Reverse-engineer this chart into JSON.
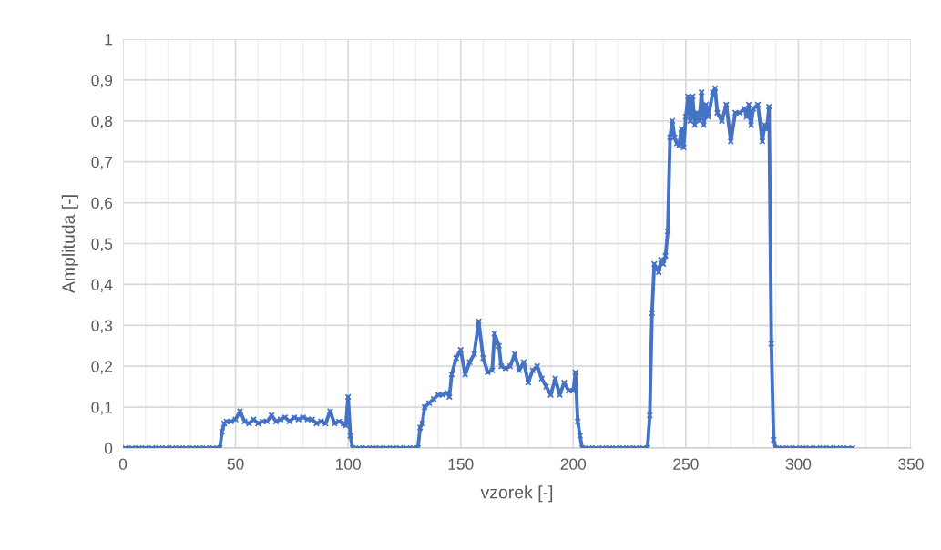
{
  "chart_data": {
    "type": "line",
    "xlabel": "vzorek [-]",
    "ylabel": "Amplituda [-]",
    "xlim": [
      0,
      350
    ],
    "xticks": [
      0,
      50,
      100,
      150,
      200,
      250,
      300,
      350
    ],
    "ylim": [
      0,
      1
    ],
    "yticks": [
      {
        "value": 0,
        "label": "0"
      },
      {
        "value": 0.1,
        "label": "0,1"
      },
      {
        "value": 0.2,
        "label": "0,2"
      },
      {
        "value": 0.3,
        "label": "0,3"
      },
      {
        "value": 0.4,
        "label": "0,4"
      },
      {
        "value": 0.5,
        "label": "0,5"
      },
      {
        "value": 0.6,
        "label": "0,6"
      },
      {
        "value": 0.7,
        "label": "0,7"
      },
      {
        "value": 0.8,
        "label": "0,8"
      },
      {
        "value": 0.9,
        "label": "0,9"
      },
      {
        "value": 1,
        "label": "1"
      }
    ],
    "grid": true,
    "marker": "cross",
    "line_style": "solid",
    "series": [
      {
        "color": "#4472c4",
        "x": [
          1,
          4,
          7,
          10,
          13,
          16,
          19,
          22,
          25,
          28,
          31,
          34,
          37,
          40,
          43,
          44,
          45,
          46,
          48,
          50,
          52,
          54,
          56,
          58,
          60,
          62,
          64,
          66,
          68,
          70,
          72,
          74,
          76,
          78,
          80,
          82,
          84,
          86,
          88,
          90,
          92,
          94,
          96,
          98,
          99,
          100,
          101,
          102,
          105,
          108,
          111,
          114,
          117,
          120,
          123,
          126,
          129,
          131,
          132,
          133,
          134,
          136,
          138,
          140,
          142,
          144,
          145,
          146,
          148,
          150,
          152,
          154,
          156,
          158,
          160,
          162,
          164,
          165,
          167,
          168,
          170,
          172,
          174,
          176,
          178,
          180,
          182,
          184,
          186,
          188,
          190,
          192,
          194,
          196,
          198,
          200,
          201,
          202,
          203,
          204,
          207,
          210,
          213,
          216,
          219,
          222,
          225,
          228,
          231,
          233,
          234,
          235,
          236,
          237,
          238,
          239,
          240,
          241,
          242,
          243,
          244,
          245,
          246,
          247,
          248,
          249,
          250,
          251,
          252,
          253,
          254,
          255,
          256,
          257,
          258,
          259,
          260,
          262,
          263,
          264,
          266,
          268,
          270,
          272,
          274,
          276,
          277,
          278,
          279,
          280,
          282,
          284,
          285,
          286,
          287,
          288,
          289,
          290,
          293,
          296,
          299,
          302,
          305,
          308,
          311,
          314,
          317,
          320,
          324
        ],
        "values": [
          0,
          0,
          0,
          0,
          0,
          0,
          0,
          0,
          0,
          0,
          0,
          0,
          0,
          0,
          0,
          0.04,
          0.06,
          0.065,
          0.065,
          0.07,
          0.09,
          0.065,
          0.06,
          0.07,
          0.06,
          0.065,
          0.065,
          0.08,
          0.065,
          0.07,
          0.075,
          0.065,
          0.075,
          0.07,
          0.075,
          0.07,
          0.07,
          0.06,
          0.065,
          0.06,
          0.09,
          0.06,
          0.065,
          0.06,
          0.055,
          0.125,
          0.03,
          0,
          0,
          0,
          0,
          0,
          0,
          0,
          0,
          0,
          0,
          0,
          0.05,
          0.06,
          0.1,
          0.11,
          0.12,
          0.13,
          0.13,
          0.135,
          0.125,
          0.18,
          0.22,
          0.24,
          0.18,
          0.21,
          0.23,
          0.31,
          0.22,
          0.185,
          0.19,
          0.28,
          0.25,
          0.2,
          0.195,
          0.2,
          0.23,
          0.19,
          0.21,
          0.16,
          0.19,
          0.2,
          0.17,
          0.15,
          0.13,
          0.17,
          0.13,
          0.16,
          0.14,
          0.14,
          0.185,
          0.065,
          0.03,
          0,
          0,
          0,
          0,
          0,
          0,
          0,
          0,
          0,
          0,
          0,
          0.08,
          0.33,
          0.45,
          0.44,
          0.43,
          0.46,
          0.45,
          0.47,
          0.53,
          0.76,
          0.8,
          0.76,
          0.745,
          0.74,
          0.78,
          0.735,
          0.81,
          0.86,
          0.8,
          0.86,
          0.79,
          0.82,
          0.8,
          0.87,
          0.79,
          0.84,
          0.81,
          0.87,
          0.88,
          0.82,
          0.8,
          0.84,
          0.75,
          0.82,
          0.82,
          0.83,
          0.81,
          0.84,
          0.79,
          0.83,
          0.84,
          0.75,
          0.79,
          0.78,
          0.835,
          0.255,
          0.02,
          0,
          0,
          0,
          0,
          0,
          0,
          0,
          0,
          0,
          0,
          0,
          0
        ]
      }
    ]
  }
}
